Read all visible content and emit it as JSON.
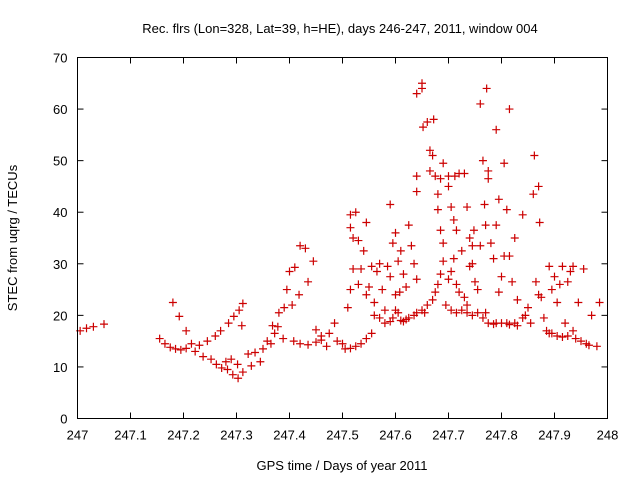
{
  "chart_data": {
    "type": "scatter",
    "title": "Rec. flrs (Lon=328, Lat=39, h=HE), days 246-247, 2011, window 004",
    "xlabel": "GPS time / Days of year 2011",
    "ylabel": "STEC from uqrg / TECUs",
    "xlim": [
      247,
      248
    ],
    "ylim": [
      0,
      70
    ],
    "xticks": [
      "247",
      "247.1",
      "247.2",
      "247.3",
      "247.4",
      "247.5",
      "247.6",
      "247.7",
      "247.8",
      "247.9",
      "248"
    ],
    "yticks": [
      "0",
      "10",
      "20",
      "30",
      "40",
      "50",
      "60",
      "70"
    ],
    "grid": false,
    "marker": "+",
    "color": "#cc0000",
    "points": [
      [
        247.005,
        17.0
      ],
      [
        247.017,
        17.5
      ],
      [
        247.03,
        17.8
      ],
      [
        247.05,
        18.3
      ],
      [
        247.155,
        15.5
      ],
      [
        247.165,
        14.5
      ],
      [
        247.175,
        13.8
      ],
      [
        247.185,
        13.5
      ],
      [
        247.195,
        13.3
      ],
      [
        247.205,
        13.6
      ],
      [
        247.18,
        22.5
      ],
      [
        247.192,
        19.8
      ],
      [
        247.205,
        17.0
      ],
      [
        247.215,
        14.5
      ],
      [
        247.222,
        13.0
      ],
      [
        247.23,
        14.2
      ],
      [
        247.237,
        12.0
      ],
      [
        247.245,
        15.0
      ],
      [
        247.252,
        11.5
      ],
      [
        247.26,
        16.0
      ],
      [
        247.262,
        10.5
      ],
      [
        247.27,
        17.0
      ],
      [
        247.272,
        9.8
      ],
      [
        247.28,
        11.0
      ],
      [
        247.283,
        9.5
      ],
      [
        247.29,
        11.5
      ],
      [
        247.293,
        8.5
      ],
      [
        247.302,
        10.5
      ],
      [
        247.303,
        7.8
      ],
      [
        247.31,
        18.0
      ],
      [
        247.312,
        9.0
      ],
      [
        247.295,
        19.8
      ],
      [
        247.305,
        21.0
      ],
      [
        247.312,
        22.3
      ],
      [
        247.285,
        18.5
      ],
      [
        247.322,
        12.5
      ],
      [
        247.328,
        10.2
      ],
      [
        247.335,
        12.8
      ],
      [
        247.345,
        11.0
      ],
      [
        247.35,
        13.5
      ],
      [
        247.358,
        15.0
      ],
      [
        247.365,
        14.5
      ],
      [
        247.372,
        16.5
      ],
      [
        247.378,
        17.8
      ],
      [
        247.388,
        15.5
      ],
      [
        247.368,
        18.0
      ],
      [
        247.38,
        20.5
      ],
      [
        247.39,
        21.5
      ],
      [
        247.395,
        25.0
      ],
      [
        247.4,
        28.5
      ],
      [
        247.405,
        22.0
      ],
      [
        247.41,
        29.3
      ],
      [
        247.418,
        24.0
      ],
      [
        247.42,
        33.5
      ],
      [
        247.43,
        33.0
      ],
      [
        247.435,
        26.5
      ],
      [
        247.445,
        30.5
      ],
      [
        247.408,
        15.0
      ],
      [
        247.42,
        14.5
      ],
      [
        247.435,
        14.3
      ],
      [
        247.45,
        14.8
      ],
      [
        247.46,
        15.2
      ],
      [
        247.47,
        14.0
      ],
      [
        247.45,
        17.2
      ],
      [
        247.46,
        16.0
      ],
      [
        247.475,
        16.5
      ],
      [
        247.485,
        18.5
      ],
      [
        247.49,
        15.0
      ],
      [
        247.5,
        14.5
      ],
      [
        247.505,
        13.5
      ],
      [
        247.515,
        13.6
      ],
      [
        247.525,
        14.0
      ],
      [
        247.535,
        14.5
      ],
      [
        247.545,
        15.5
      ],
      [
        247.555,
        16.5
      ],
      [
        247.51,
        21.5
      ],
      [
        247.515,
        25.0
      ],
      [
        247.52,
        29.0
      ],
      [
        247.52,
        35.0
      ],
      [
        247.515,
        37.0
      ],
      [
        247.515,
        39.5
      ],
      [
        247.525,
        40.0
      ],
      [
        247.53,
        34.5
      ],
      [
        247.535,
        29.0
      ],
      [
        247.54,
        32.5
      ],
      [
        247.545,
        38.0
      ],
      [
        247.55,
        25.5
      ],
      [
        247.555,
        29.5
      ],
      [
        247.56,
        22.5
      ],
      [
        247.565,
        28.5
      ],
      [
        247.57,
        30.0
      ],
      [
        247.575,
        25.0
      ],
      [
        247.58,
        21.0
      ],
      [
        247.53,
        26.0
      ],
      [
        247.545,
        24.0
      ],
      [
        247.56,
        20.0
      ],
      [
        247.57,
        19.5
      ],
      [
        247.58,
        18.5
      ],
      [
        247.585,
        29.5
      ],
      [
        247.59,
        41.5
      ],
      [
        247.595,
        34.0
      ],
      [
        247.6,
        36.0
      ],
      [
        247.605,
        30.5
      ],
      [
        247.61,
        32.5
      ],
      [
        247.59,
        27.5
      ],
      [
        247.6,
        24.0
      ],
      [
        247.605,
        20.5
      ],
      [
        247.61,
        19.0
      ],
      [
        247.615,
        18.8
      ],
      [
        247.62,
        19.2
      ],
      [
        247.59,
        18.8
      ],
      [
        247.595,
        19.5
      ],
      [
        247.6,
        21.0
      ],
      [
        247.608,
        24.5
      ],
      [
        247.615,
        28.0
      ],
      [
        247.62,
        25.5
      ],
      [
        247.625,
        37.5
      ],
      [
        247.63,
        33.5
      ],
      [
        247.635,
        30.0
      ],
      [
        247.64,
        27.0
      ],
      [
        247.625,
        19.5
      ],
      [
        247.635,
        20.0
      ],
      [
        247.64,
        20.5
      ],
      [
        247.65,
        21.0
      ],
      [
        247.655,
        20.5
      ],
      [
        247.66,
        22.0
      ],
      [
        247.64,
        44.0
      ],
      [
        247.64,
        47.0
      ],
      [
        247.64,
        63.0
      ],
      [
        247.65,
        64.0
      ],
      [
        247.65,
        65.0
      ],
      [
        247.652,
        56.5
      ],
      [
        247.66,
        57.5
      ],
      [
        247.665,
        52.0
      ],
      [
        247.665,
        48.0
      ],
      [
        247.67,
        51.0
      ],
      [
        247.672,
        58.0
      ],
      [
        247.675,
        47.0
      ],
      [
        247.68,
        40.5
      ],
      [
        247.68,
        43.5
      ],
      [
        247.685,
        46.5
      ],
      [
        247.685,
        36.5
      ],
      [
        247.69,
        34.0
      ],
      [
        247.69,
        49.5
      ],
      [
        247.67,
        23.0
      ],
      [
        247.675,
        24.5
      ],
      [
        247.68,
        26.0
      ],
      [
        247.685,
        28.0
      ],
      [
        247.69,
        30.5
      ],
      [
        247.695,
        22.0
      ],
      [
        247.7,
        47.0
      ],
      [
        247.7,
        45.0
      ],
      [
        247.705,
        41.0
      ],
      [
        247.71,
        38.5
      ],
      [
        247.712,
        47.0
      ],
      [
        247.715,
        36.5
      ],
      [
        247.7,
        27.0
      ],
      [
        247.705,
        28.5
      ],
      [
        247.71,
        31.0
      ],
      [
        247.715,
        26.0
      ],
      [
        247.72,
        24.5
      ],
      [
        247.725,
        32.5
      ],
      [
        247.72,
        47.5
      ],
      [
        247.73,
        47.5
      ],
      [
        247.735,
        41.0
      ],
      [
        247.74,
        35.0
      ],
      [
        247.745,
        33.5
      ],
      [
        247.748,
        36.5
      ],
      [
        247.73,
        23.5
      ],
      [
        247.735,
        22.0
      ],
      [
        247.74,
        29.5
      ],
      [
        247.745,
        30.0
      ],
      [
        247.75,
        26.5
      ],
      [
        247.755,
        25.0
      ],
      [
        247.705,
        21.0
      ],
      [
        247.715,
        20.5
      ],
      [
        247.725,
        21.0
      ],
      [
        247.735,
        20.5
      ],
      [
        247.745,
        20.0
      ],
      [
        247.755,
        20.5
      ],
      [
        247.76,
        61.0
      ],
      [
        247.765,
        50.0
      ],
      [
        247.768,
        41.5
      ],
      [
        247.77,
        37.5
      ],
      [
        247.772,
        64.0
      ],
      [
        247.775,
        48.0
      ],
      [
        247.775,
        46.5
      ],
      [
        247.78,
        34.0
      ],
      [
        247.785,
        31.0
      ],
      [
        247.79,
        37.5
      ],
      [
        247.79,
        56.0
      ],
      [
        247.795,
        42.5
      ],
      [
        247.76,
        33.5
      ],
      [
        247.765,
        19.5
      ],
      [
        247.77,
        20.5
      ],
      [
        247.775,
        18.5
      ],
      [
        247.785,
        18.3
      ],
      [
        247.79,
        18.5
      ],
      [
        247.795,
        24.5
      ],
      [
        247.8,
        27.5
      ],
      [
        247.805,
        31.5
      ],
      [
        247.805,
        49.5
      ],
      [
        247.81,
        40.5
      ],
      [
        247.815,
        31.5
      ],
      [
        247.8,
        18.5
      ],
      [
        247.81,
        18.5
      ],
      [
        247.815,
        18.2
      ],
      [
        247.825,
        18.5
      ],
      [
        247.83,
        18.0
      ],
      [
        247.84,
        19.5
      ],
      [
        247.815,
        60.0
      ],
      [
        247.82,
        26.5
      ],
      [
        247.825,
        35.0
      ],
      [
        247.83,
        23.0
      ],
      [
        247.84,
        39.5
      ],
      [
        247.845,
        20.0
      ],
      [
        247.85,
        21.5
      ],
      [
        247.855,
        18.5
      ],
      [
        247.86,
        43.5
      ],
      [
        247.862,
        51.0
      ],
      [
        247.87,
        45.0
      ],
      [
        247.872,
        38.0
      ],
      [
        247.865,
        26.5
      ],
      [
        247.87,
        24.0
      ],
      [
        247.875,
        23.5
      ],
      [
        247.88,
        19.5
      ],
      [
        247.885,
        17.0
      ],
      [
        247.89,
        16.5
      ],
      [
        247.89,
        29.5
      ],
      [
        247.895,
        25.0
      ],
      [
        247.9,
        27.5
      ],
      [
        247.905,
        22.5
      ],
      [
        247.91,
        26.0
      ],
      [
        247.915,
        29.5
      ],
      [
        247.895,
        16.5
      ],
      [
        247.905,
        16.0
      ],
      [
        247.915,
        15.8
      ],
      [
        247.925,
        16.0
      ],
      [
        247.935,
        17.0
      ],
      [
        247.94,
        15.5
      ],
      [
        247.92,
        18.5
      ],
      [
        247.925,
        26.5
      ],
      [
        247.93,
        28.5
      ],
      [
        247.935,
        29.5
      ],
      [
        247.945,
        22.5
      ],
      [
        247.955,
        29.0
      ],
      [
        247.95,
        15.0
      ],
      [
        247.96,
        14.5
      ],
      [
        247.965,
        14.2
      ],
      [
        247.97,
        20.0
      ],
      [
        247.98,
        14.0
      ],
      [
        247.985,
        22.5
      ]
    ]
  }
}
